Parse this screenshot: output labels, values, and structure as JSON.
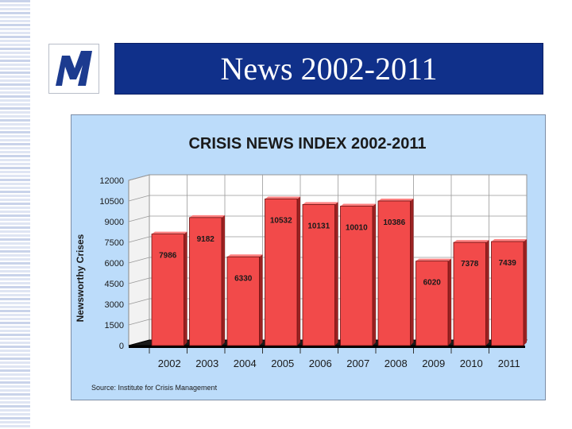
{
  "slide": {
    "title": "News 2002-2011"
  },
  "colors": {
    "title_bar": "#10308a",
    "chart_background": "#bcdcfa",
    "bar_fill": "#f24a4a",
    "floor": "#1a1a1a"
  },
  "chart_data": {
    "type": "bar",
    "title": "CRISIS NEWS INDEX 2002-2011",
    "ylabel": "Newsworthy Crises",
    "xlabel": "",
    "categories": [
      "2002",
      "2003",
      "2004",
      "2005",
      "2006",
      "2007",
      "2008",
      "2009",
      "2010",
      "2011"
    ],
    "values": [
      7986,
      9182,
      6330,
      10532,
      10131,
      10010,
      10386,
      6020,
      7378,
      7439
    ],
    "data_labels": [
      "7986",
      "9182",
      "6330",
      "10532",
      "10131",
      "10010",
      "10386",
      "6020",
      "7378",
      "7439"
    ],
    "yticks": [
      "0",
      "1500",
      "3000",
      "4500",
      "6000",
      "7500",
      "9000",
      "10500",
      "12000"
    ],
    "ylim": [
      0,
      12000
    ],
    "grid": true,
    "source": "Source: Institute for Crisis Management"
  }
}
